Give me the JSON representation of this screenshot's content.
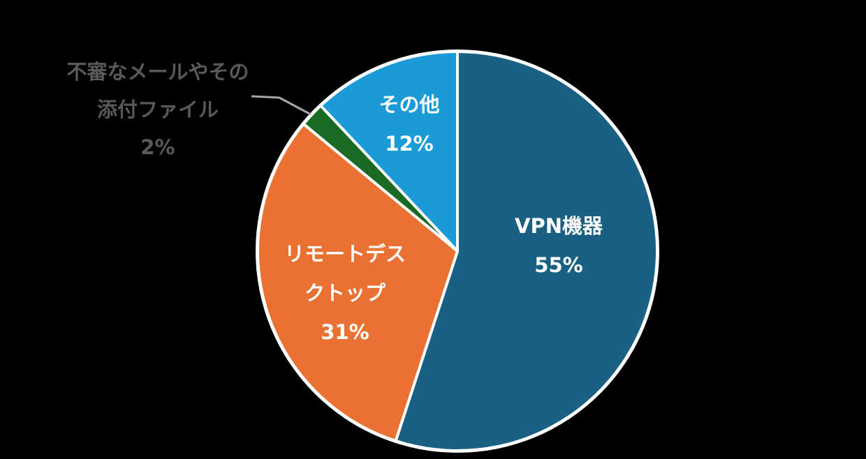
{
  "chart_data": {
    "type": "pie",
    "title": "",
    "categories": [
      "VPN機器",
      "リモートデスクトップ",
      "不審なメールやその添付ファイル",
      "その他"
    ],
    "values": [
      55,
      31,
      2,
      12
    ],
    "unit": "%",
    "colors": [
      "#1a6082",
      "#e97132",
      "#196b24",
      "#1a9ad6"
    ],
    "start_angle_deg": 0,
    "direction": "clockwise",
    "legend": "none",
    "labels": [
      {
        "name_lines": [
          "VPN機器"
        ],
        "pct": "55%",
        "position": "inside"
      },
      {
        "name_lines": [
          "リモートデス",
          "クトップ"
        ],
        "pct": "31%",
        "position": "inside"
      },
      {
        "name_lines": [
          "不審なメールやその",
          "添付ファイル"
        ],
        "pct": "2%",
        "position": "outside",
        "leader_line": true
      },
      {
        "name_lines": [
          "その他"
        ],
        "pct": "12%",
        "position": "inside"
      }
    ]
  },
  "background": "#000000",
  "slice_border_color": "#ffffff",
  "leader_line_color": "#a6a6a6",
  "external_label_color": "#595959"
}
